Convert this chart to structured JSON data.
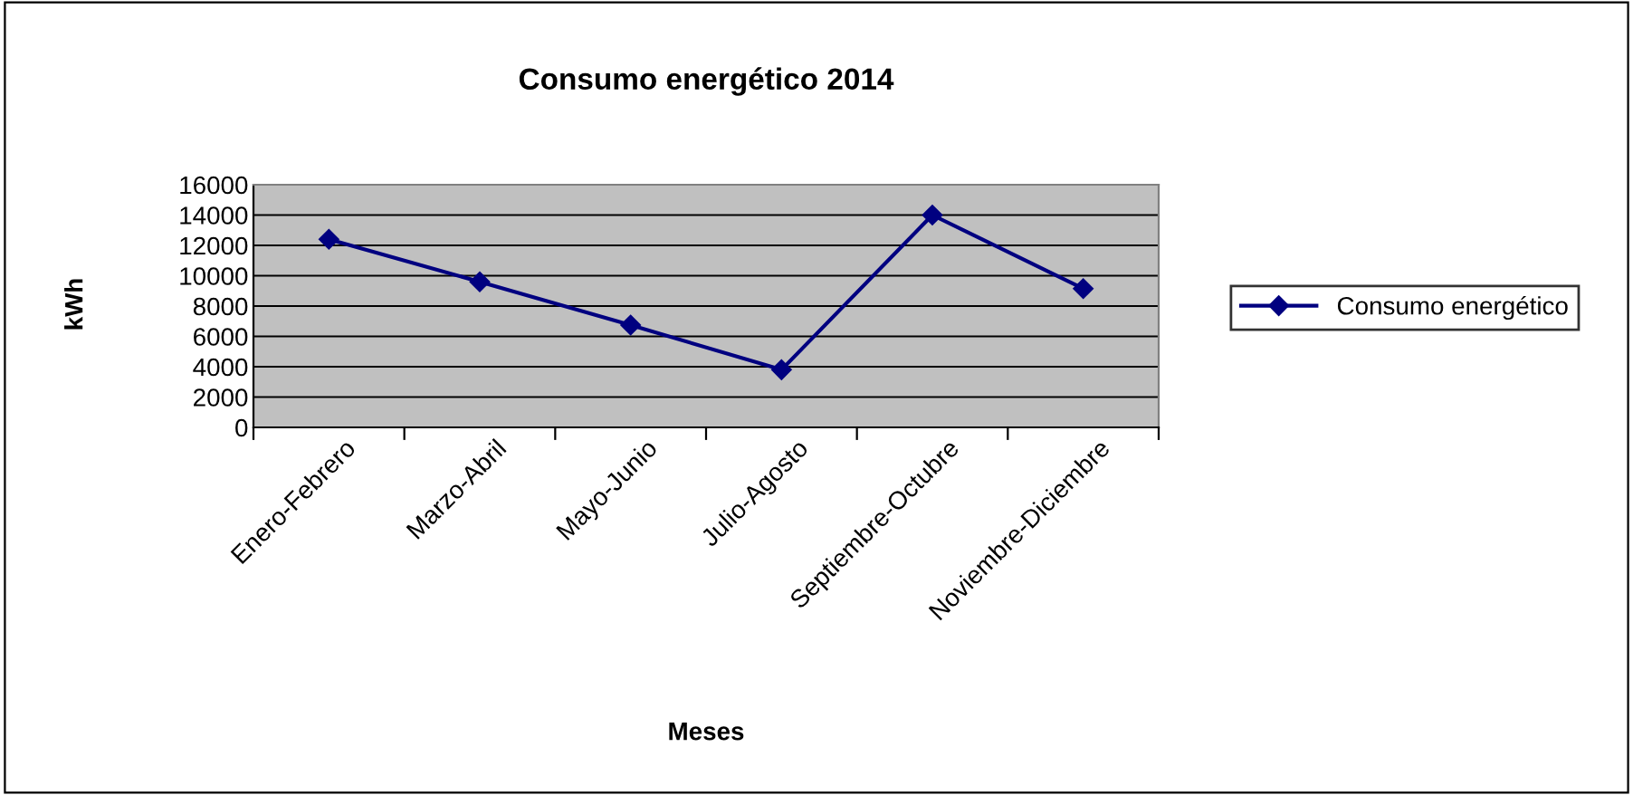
{
  "chart_data": {
    "type": "line",
    "title": "Consumo energético 2014",
    "xlabel": "Meses",
    "ylabel": "kWh",
    "categories": [
      "Enero-Febrero",
      "Marzo-Abril",
      "Mayo-Junio",
      "Julio-Agosto",
      "Septiembre-Octubre",
      "Noviembre-Diciembre"
    ],
    "series": [
      {
        "name": "Consumo energético",
        "color": "#000080",
        "values": [
          12400,
          9600,
          6750,
          3800,
          14000,
          9150
        ]
      }
    ],
    "ylim": [
      0,
      16000
    ],
    "yticks": [
      0,
      2000,
      4000,
      6000,
      8000,
      10000,
      12000,
      14000,
      16000
    ],
    "grid": "y",
    "legend": "right",
    "marker": "diamond",
    "line_style": "solid"
  }
}
